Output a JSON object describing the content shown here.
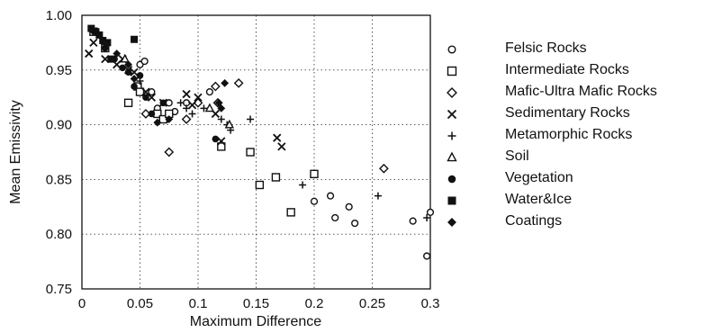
{
  "chart_data": {
    "type": "scatter",
    "xlabel": "Maximum Difference",
    "ylabel": "Mean Emissivity",
    "xlim": [
      0,
      0.3
    ],
    "ylim": [
      0.75,
      1.0
    ],
    "x_tick_labels": [
      "0",
      "0.05",
      "0.1",
      "0.15",
      "0.2",
      "0.25",
      "0.3"
    ],
    "y_tick_labels": [
      "0.75",
      "0.80",
      "0.85",
      "0.90",
      "0.95",
      "1.00"
    ],
    "grid": "dotted",
    "legend_position": "right",
    "series": [
      {
        "name": "Felsic Rocks",
        "marker": "circle-open",
        "x": [
          0.05,
          0.054,
          0.06,
          0.065,
          0.073,
          0.075,
          0.08,
          0.09,
          0.11,
          0.2,
          0.214,
          0.218,
          0.23,
          0.235,
          0.285,
          0.297,
          0.3
        ],
        "y": [
          0.955,
          0.958,
          0.93,
          0.915,
          0.905,
          0.92,
          0.912,
          0.92,
          0.93,
          0.83,
          0.835,
          0.815,
          0.825,
          0.81,
          0.812,
          0.78,
          0.82
        ]
      },
      {
        "name": "Intermediate Rocks",
        "marker": "square-open",
        "x": [
          0.01,
          0.02,
          0.04,
          0.048,
          0.05,
          0.065,
          0.07,
          0.075,
          0.12,
          0.145,
          0.153,
          0.167,
          0.18,
          0.2
        ],
        "y": [
          0.985,
          0.97,
          0.92,
          0.935,
          0.93,
          0.91,
          0.905,
          0.91,
          0.88,
          0.875,
          0.845,
          0.852,
          0.82,
          0.855
        ]
      },
      {
        "name": "Mafic-Ultra Mafic Rocks",
        "marker": "diamond-open",
        "x": [
          0.055,
          0.075,
          0.09,
          0.1,
          0.115,
          0.117,
          0.135,
          0.26
        ],
        "y": [
          0.91,
          0.875,
          0.905,
          0.92,
          0.935,
          0.92,
          0.938,
          0.86
        ]
      },
      {
        "name": "Sedimentary Rocks",
        "marker": "x",
        "x": [
          0.006,
          0.01,
          0.02,
          0.03,
          0.035,
          0.04,
          0.045,
          0.055,
          0.06,
          0.07,
          0.09,
          0.095,
          0.1,
          0.115,
          0.12,
          0.168,
          0.172
        ],
        "y": [
          0.965,
          0.975,
          0.96,
          0.955,
          0.96,
          0.95,
          0.948,
          0.93,
          0.925,
          0.92,
          0.928,
          0.918,
          0.925,
          0.91,
          0.885,
          0.888,
          0.88
        ]
      },
      {
        "name": "Metamorphic Rocks",
        "marker": "plus",
        "x": [
          0.05,
          0.085,
          0.09,
          0.095,
          0.105,
          0.12,
          0.125,
          0.128,
          0.145,
          0.19,
          0.255,
          0.297
        ],
        "y": [
          0.94,
          0.92,
          0.915,
          0.91,
          0.915,
          0.905,
          0.9,
          0.895,
          0.905,
          0.845,
          0.835,
          0.815
        ]
      },
      {
        "name": "Soil",
        "marker": "triangle-open",
        "x": [
          0.037,
          0.11,
          0.127
        ],
        "y": [
          0.96,
          0.915,
          0.9
        ]
      },
      {
        "name": "Vegetation",
        "marker": "circle-filled",
        "x": [
          0.012,
          0.02,
          0.028,
          0.035,
          0.04,
          0.045,
          0.05,
          0.055,
          0.06,
          0.07,
          0.115
        ],
        "y": [
          0.985,
          0.97,
          0.96,
          0.952,
          0.948,
          0.935,
          0.945,
          0.925,
          0.91,
          0.92,
          0.887
        ]
      },
      {
        "name": "Water&Ice",
        "marker": "square-filled",
        "x": [
          0.008,
          0.012,
          0.015,
          0.018,
          0.022,
          0.025,
          0.045
        ],
        "y": [
          0.988,
          0.985,
          0.982,
          0.977,
          0.975,
          0.96,
          0.978
        ]
      },
      {
        "name": "Coatings",
        "marker": "diamond-filled",
        "x": [
          0.01,
          0.02,
          0.03,
          0.04,
          0.045,
          0.065,
          0.075,
          0.118,
          0.12,
          0.123
        ],
        "y": [
          0.985,
          0.975,
          0.965,
          0.955,
          0.942,
          0.902,
          0.905,
          0.92,
          0.915,
          0.938
        ]
      }
    ]
  }
}
